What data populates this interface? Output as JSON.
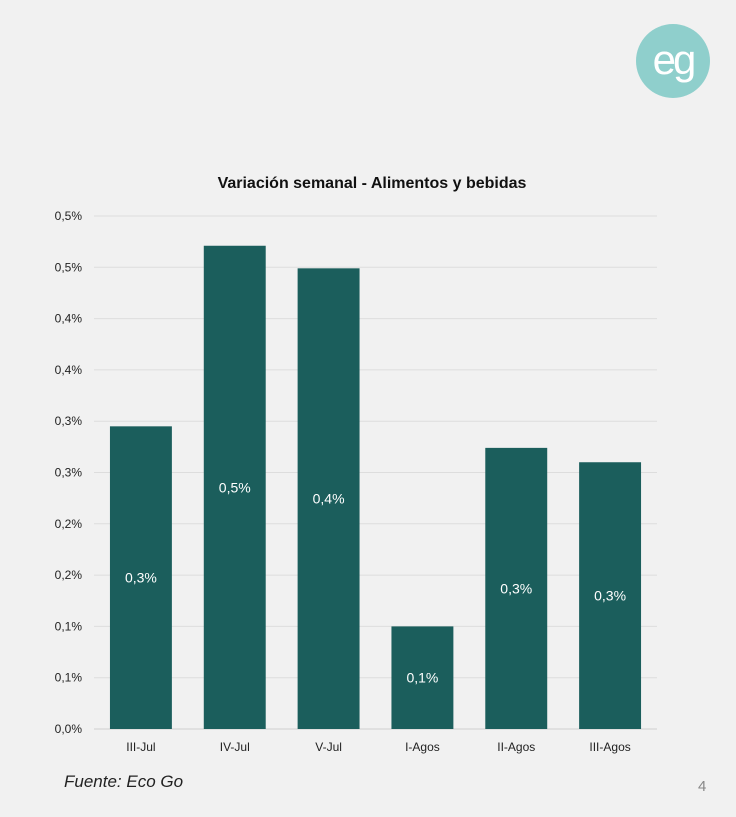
{
  "logo": {
    "text": "eg",
    "bg_color": "#8fcfcc"
  },
  "colors": {
    "bar": "#1b5e5c",
    "grid": "#dddddd",
    "axis": "#cfcfcf"
  },
  "chart_data": {
    "type": "bar",
    "title": "Variación semanal - Alimentos y bebidas",
    "xlabel": "",
    "ylabel": "",
    "categories": [
      "III-Jul",
      "IV-Jul",
      "V-Jul",
      "I-Agos",
      "II-Agos",
      "III-Agos"
    ],
    "values": [
      0.295,
      0.471,
      0.449,
      0.1,
      0.274,
      0.26
    ],
    "data_labels": [
      "0,3%",
      "0,5%",
      "0,4%",
      "0,1%",
      "0,3%",
      "0,3%"
    ],
    "ylim": [
      0,
      0.5
    ],
    "ytick_values": [
      0,
      0.05,
      0.1,
      0.15,
      0.2,
      0.25,
      0.3,
      0.35,
      0.4,
      0.45,
      0.5
    ],
    "ytick_labels": [
      "0,0%",
      "0,1%",
      "0,1%",
      "0,2%",
      "0,2%",
      "0,3%",
      "0,3%",
      "0,4%",
      "0,4%",
      "0,5%",
      "0,5%"
    ],
    "grid": true,
    "legend": "none"
  },
  "footer": {
    "source": "Fuente: Eco Go",
    "page_number": "4"
  }
}
